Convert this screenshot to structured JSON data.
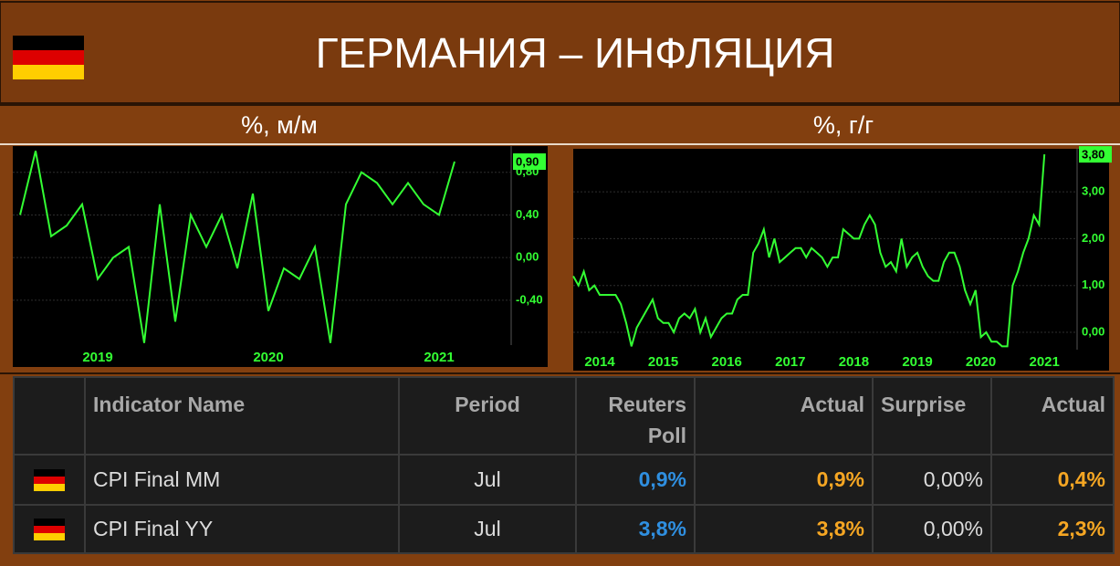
{
  "header": {
    "title": "ГЕРМАНИЯ – ИНФЛЯЦИЯ"
  },
  "chart_data": [
    {
      "type": "line",
      "title": "%, м/м",
      "color": "#33ff33",
      "categories": [
        null,
        null,
        null,
        null,
        null,
        "2019",
        null,
        null,
        null,
        null,
        null,
        null,
        null,
        null,
        null,
        null,
        "2020",
        null,
        null,
        null,
        null,
        null,
        null,
        null,
        null,
        null,
        null,
        "2021",
        null
      ],
      "values": [
        0.4,
        1.0,
        0.2,
        0.3,
        0.5,
        -0.2,
        0.0,
        0.1,
        -0.8,
        0.5,
        -0.6,
        0.4,
        0.1,
        0.4,
        -0.1,
        0.6,
        -0.5,
        -0.1,
        -0.2,
        0.1,
        -0.8,
        0.5,
        0.8,
        0.7,
        0.5,
        0.7,
        0.5,
        0.4,
        0.9
      ],
      "ylim": [
        -0.82,
        1.02
      ],
      "yticks": [
        {
          "value": -0.4,
          "label": "-0,40"
        },
        {
          "value": 0,
          "label": "0,00"
        },
        {
          "value": 0.4,
          "label": "0,40"
        },
        {
          "value": 0.8,
          "label": "0,80"
        }
      ],
      "annotation": {
        "value": 0.9,
        "label": "0,90"
      },
      "grid": true
    },
    {
      "type": "line",
      "title": "%, г/г",
      "color": "#33ff33",
      "categories": [
        null,
        null,
        null,
        null,
        null,
        "2014",
        null,
        null,
        null,
        null,
        null,
        null,
        null,
        null,
        null,
        null,
        null,
        "2015",
        null,
        null,
        null,
        null,
        null,
        null,
        null,
        null,
        null,
        null,
        null,
        "2016",
        null,
        null,
        null,
        null,
        null,
        null,
        null,
        null,
        null,
        null,
        null,
        "2017",
        null,
        null,
        null,
        null,
        null,
        null,
        null,
        null,
        null,
        null,
        null,
        "2018",
        null,
        null,
        null,
        null,
        null,
        null,
        null,
        null,
        null,
        null,
        null,
        "2019",
        null,
        null,
        null,
        null,
        null,
        null,
        null,
        null,
        null,
        null,
        null,
        "2020",
        null,
        null,
        null,
        null,
        null,
        null,
        null,
        null,
        null,
        null,
        null,
        "2021"
      ],
      "values": [
        1.2,
        1.0,
        1.3,
        0.9,
        1.0,
        0.8,
        0.8,
        0.8,
        0.8,
        0.6,
        0.2,
        -0.3,
        0.1,
        0.3,
        0.5,
        0.7,
        0.3,
        0.2,
        0.2,
        0.0,
        0.3,
        0.4,
        0.3,
        0.5,
        0.0,
        0.3,
        -0.1,
        0.1,
        0.3,
        0.4,
        0.4,
        0.7,
        0.8,
        0.8,
        1.7,
        1.9,
        2.2,
        1.6,
        2.0,
        1.5,
        1.6,
        1.7,
        1.8,
        1.8,
        1.6,
        1.8,
        1.7,
        1.6,
        1.4,
        1.6,
        1.6,
        2.2,
        2.1,
        2.0,
        2.0,
        2.3,
        2.5,
        2.3,
        1.7,
        1.4,
        1.5,
        1.3,
        2.0,
        1.4,
        1.6,
        1.7,
        1.4,
        1.2,
        1.1,
        1.1,
        1.5,
        1.7,
        1.7,
        1.4,
        0.9,
        0.6,
        0.9,
        -0.1,
        0.0,
        -0.2,
        -0.2,
        -0.3,
        -0.3,
        1.0,
        1.3,
        1.7,
        2.0,
        2.5,
        2.3,
        3.8
      ],
      "ylim": [
        -0.37,
        3.88
      ],
      "yticks": [
        {
          "value": 0,
          "label": "0,00"
        },
        {
          "value": 1,
          "label": "1,00"
        },
        {
          "value": 2,
          "label": "2,00"
        },
        {
          "value": 3,
          "label": "3,00"
        }
      ],
      "annotation": {
        "value": 3.8,
        "label": "3,80"
      },
      "grid": true
    }
  ],
  "table": {
    "columns": [
      "Indicator Name",
      "Period",
      "Reuters Poll",
      "Actual",
      "Surprise",
      "Actual"
    ],
    "rows": [
      [
        "CPI Final MM",
        "Jul",
        "0,9%",
        "0,9%",
        "0,00%",
        "0,4%"
      ],
      [
        "CPI Final YY",
        "Jul",
        "3,8%",
        "3,8%",
        "0,00%",
        "2,3%"
      ]
    ]
  }
}
